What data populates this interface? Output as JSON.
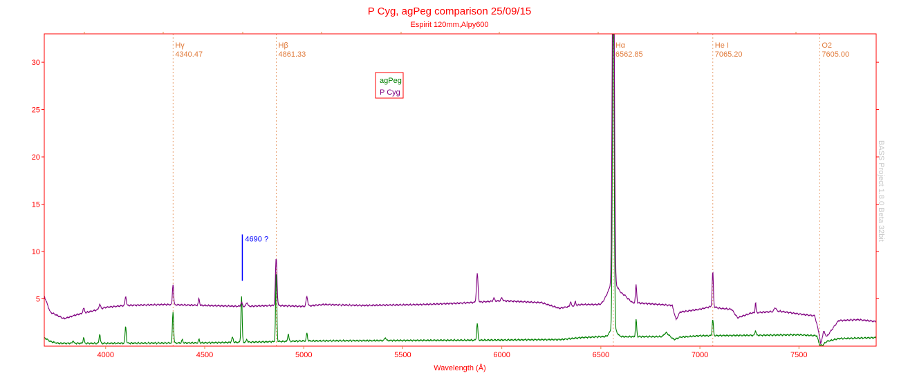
{
  "chart_data": {
    "type": "line",
    "title": "P Cyg, agPeg comparison 25/09/15",
    "subtitle": "Espirit 120mm,Alpy600",
    "xlabel": "Wavelength (Å)",
    "ylabel": "",
    "xlim": [
      3690,
      7890
    ],
    "ylim": [
      0,
      33
    ],
    "xticks": [
      "4000",
      "4500",
      "5000",
      "5500",
      "6000",
      "6500",
      "7000",
      "7500"
    ],
    "yticks": [
      "5",
      "10",
      "15",
      "20",
      "25",
      "30"
    ],
    "grid": false,
    "legend_position": "top-center",
    "series": [
      {
        "name": "agPeg",
        "color": "#008000",
        "continuum": [
          [
            3690,
            0.9
          ],
          [
            3720,
            0.5
          ],
          [
            3760,
            0.3
          ],
          [
            4000,
            0.3
          ],
          [
            4500,
            0.35
          ],
          [
            4800,
            0.45
          ],
          [
            5000,
            0.55
          ],
          [
            5500,
            0.6
          ],
          [
            6000,
            0.65
          ],
          [
            6300,
            0.7
          ],
          [
            6400,
            0.9
          ],
          [
            6500,
            1.0
          ],
          [
            6700,
            1.0
          ],
          [
            6850,
            1.0
          ],
          [
            6870,
            0.7
          ],
          [
            6900,
            0.95
          ],
          [
            7000,
            1.1
          ],
          [
            7300,
            1.15
          ],
          [
            7500,
            1.2
          ],
          [
            7590,
            1.1
          ],
          [
            7605,
            0.1
          ],
          [
            7620,
            0.1
          ],
          [
            7640,
            0.5
          ],
          [
            7700,
            0.8
          ],
          [
            7890,
            0.9
          ]
        ],
        "lines": [
          [
            3835,
            0.3,
            3
          ],
          [
            3889,
            0.6,
            3
          ],
          [
            3970,
            1.0,
            3
          ],
          [
            4101,
            1.8,
            3
          ],
          [
            4340,
            3.3,
            3
          ],
          [
            4387,
            0.35,
            3
          ],
          [
            4471,
            0.35,
            3
          ],
          [
            4640,
            0.5,
            4
          ],
          [
            4686,
            4.9,
            3
          ],
          [
            4713,
            0.3,
            3
          ],
          [
            4861,
            7.4,
            3
          ],
          [
            4922,
            0.8,
            3
          ],
          [
            5016,
            0.8,
            3
          ],
          [
            5412,
            0.3,
            4
          ],
          [
            5876,
            1.8,
            3
          ],
          [
            6562.8,
            40,
            4
          ],
          [
            6562.8,
            1.0,
            15
          ],
          [
            6678,
            1.8,
            3
          ],
          [
            6830,
            0.4,
            10
          ],
          [
            7065,
            1.7,
            3
          ],
          [
            7281,
            0.5,
            3
          ]
        ]
      },
      {
        "name": "P Cyg",
        "color": "#800080",
        "continuum": [
          [
            3690,
            5.3
          ],
          [
            3720,
            3.6
          ],
          [
            3790,
            2.9
          ],
          [
            3850,
            3.3
          ],
          [
            3950,
            3.8
          ],
          [
            4000,
            4.1
          ],
          [
            4100,
            4.3
          ],
          [
            4300,
            4.4
          ],
          [
            4500,
            4.3
          ],
          [
            4700,
            4.2
          ],
          [
            4850,
            4.3
          ],
          [
            5000,
            4.2
          ],
          [
            5100,
            4.4
          ],
          [
            5300,
            4.3
          ],
          [
            5600,
            4.4
          ],
          [
            5800,
            4.55
          ],
          [
            6000,
            4.8
          ],
          [
            6100,
            4.7
          ],
          [
            6200,
            4.6
          ],
          [
            6290,
            4.0
          ],
          [
            6400,
            4.4
          ],
          [
            6500,
            4.4
          ],
          [
            6540,
            5.0
          ],
          [
            6620,
            5.3
          ],
          [
            6660,
            4.6
          ],
          [
            6800,
            4.4
          ],
          [
            6860,
            4.3
          ],
          [
            6880,
            2.8
          ],
          [
            6900,
            3.6
          ],
          [
            7000,
            3.9
          ],
          [
            7060,
            4.2
          ],
          [
            7100,
            4.0
          ],
          [
            7160,
            3.9
          ],
          [
            7190,
            3.0
          ],
          [
            7260,
            3.5
          ],
          [
            7400,
            3.7
          ],
          [
            7500,
            3.4
          ],
          [
            7580,
            3.2
          ],
          [
            7600,
            1.5
          ],
          [
            7610,
            0.2
          ],
          [
            7625,
            1.6
          ],
          [
            7640,
            1.0
          ],
          [
            7700,
            2.7
          ],
          [
            7800,
            2.8
          ],
          [
            7890,
            2.6
          ]
        ],
        "lines": [
          [
            3889,
            0.5,
            4
          ],
          [
            3970,
            0.5,
            4
          ],
          [
            4101,
            1.0,
            3
          ],
          [
            4340,
            2.2,
            3
          ],
          [
            4471,
            0.7,
            3
          ],
          [
            4686,
            0.4,
            4
          ],
          [
            4713,
            0.4,
            4
          ],
          [
            4861,
            5.0,
            4
          ],
          [
            5016,
            1.0,
            4
          ],
          [
            5876,
            3.0,
            4
          ],
          [
            5960,
            0.3,
            4
          ],
          [
            6000,
            0.3,
            4
          ],
          [
            6347,
            0.5,
            3
          ],
          [
            6371,
            0.4,
            3
          ],
          [
            6562.8,
            45,
            5
          ],
          [
            6562.8,
            1.5,
            25
          ],
          [
            6678,
            1.9,
            3
          ],
          [
            7065,
            3.7,
            3
          ],
          [
            7281,
            1.2,
            2
          ],
          [
            7380,
            0.4,
            5
          ]
        ]
      }
    ],
    "markers": [
      {
        "name": "Hγ",
        "value": "4340.47",
        "x": 4340.47
      },
      {
        "name": "Hβ",
        "value": "4861.33",
        "x": 4861.33
      },
      {
        "name": "Hα",
        "value": "6562.85",
        "x": 6562.85
      },
      {
        "name": "He I",
        "value": "7065.20",
        "x": 7065.2
      },
      {
        "name": "O2",
        "value": "7605.00",
        "x": 7605.0
      }
    ],
    "annotation": {
      "text": "4690 ?",
      "x": 4690,
      "y_range": [
        6.9,
        11.8
      ],
      "color": "#0000ff"
    },
    "watermark": "BASS Project 1.8.0 Beta 32bit",
    "colors": {
      "axis": "#ff0000",
      "marker": "#e8a070"
    }
  }
}
